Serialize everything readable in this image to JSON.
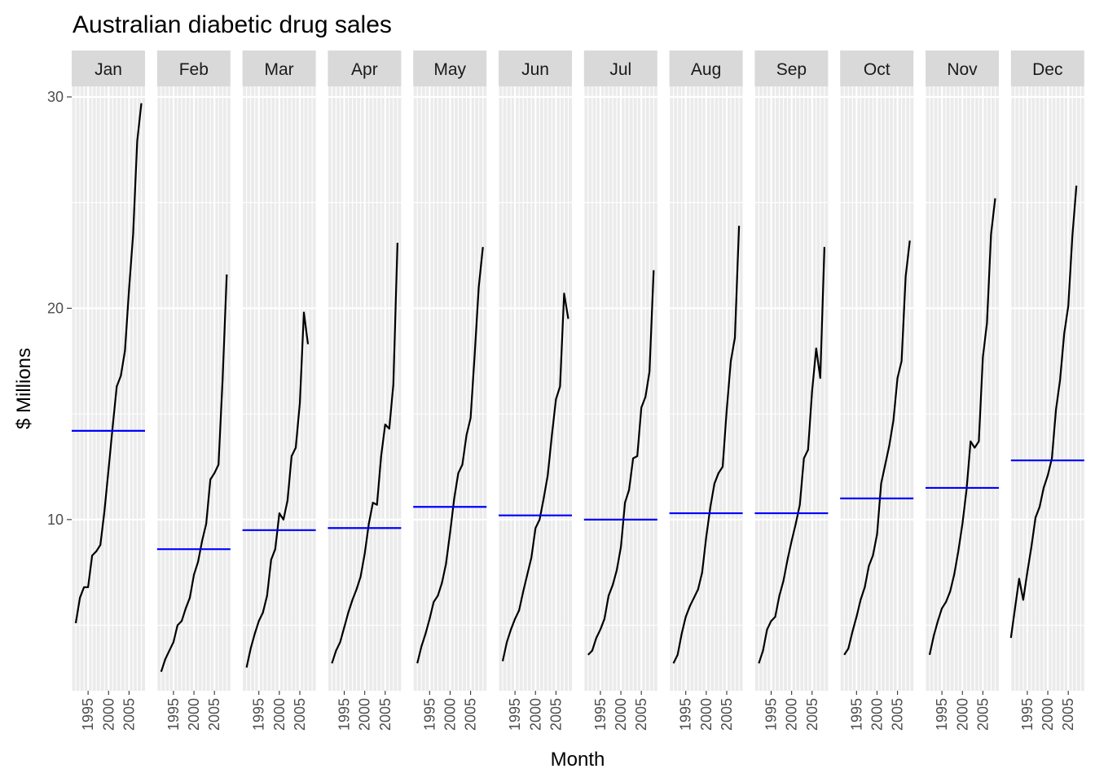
{
  "chart_data": {
    "type": "line",
    "title": "Australian diabetic drug sales",
    "xlabel": "Month",
    "ylabel": "$ Millions",
    "ylim": [
      1.9,
      30.5
    ],
    "yticks": [
      10,
      20,
      30
    ],
    "xlim": [
      1991,
      2008.9
    ],
    "xticks": [
      1995,
      2000,
      2005
    ],
    "colors": {
      "series": "#000000",
      "mean": "#0000ff",
      "panel": "#ebebeb",
      "strip": "#d9d9d9",
      "grid": "#ffffff"
    },
    "panels": [
      {
        "month": "Jan",
        "mean": 14.2,
        "years": [
          1992,
          1993,
          1994,
          1995,
          1996,
          1997,
          1998,
          1999,
          2000,
          2001,
          2002,
          2003,
          2004,
          2005,
          2006,
          2007,
          2008
        ],
        "values": [
          5.1,
          6.3,
          6.8,
          6.8,
          8.3,
          8.5,
          8.8,
          10.4,
          12.4,
          14.4,
          16.3,
          16.8,
          18.0,
          20.9,
          23.5,
          27.9,
          29.7
        ]
      },
      {
        "month": "Feb",
        "mean": 8.6,
        "years": [
          1992,
          1993,
          1994,
          1995,
          1996,
          1997,
          1998,
          1999,
          2000,
          2001,
          2002,
          2003,
          2004,
          2005,
          2006,
          2007,
          2008
        ],
        "values": [
          2.8,
          3.4,
          3.8,
          4.2,
          5.0,
          5.2,
          5.8,
          6.3,
          7.4,
          8.0,
          9.0,
          9.8,
          11.9,
          12.2,
          12.6,
          16.6,
          21.6
        ]
      },
      {
        "month": "Mar",
        "mean": 9.5,
        "years": [
          1992,
          1993,
          1994,
          1995,
          1996,
          1997,
          1998,
          1999,
          2000,
          2001,
          2002,
          2003,
          2004,
          2005,
          2006,
          2007,
          2008
        ],
        "values": [
          3.0,
          3.9,
          4.6,
          5.2,
          5.6,
          6.4,
          8.1,
          8.6,
          10.3,
          10.0,
          10.9,
          13.0,
          13.4,
          15.5,
          19.8,
          18.3,
          null
        ]
      },
      {
        "month": "Apr",
        "mean": 9.6,
        "years": [
          1992,
          1993,
          1994,
          1995,
          1996,
          1997,
          1998,
          1999,
          2000,
          2001,
          2002,
          2003,
          2004,
          2005,
          2006,
          2007,
          2008
        ],
        "values": [
          3.2,
          3.8,
          4.2,
          4.9,
          5.6,
          6.2,
          6.7,
          7.3,
          8.4,
          9.8,
          10.8,
          10.7,
          13.0,
          14.5,
          14.3,
          16.4,
          23.1
        ]
      },
      {
        "month": "May",
        "mean": 10.6,
        "years": [
          1992,
          1993,
          1994,
          1995,
          1996,
          1997,
          1998,
          1999,
          2000,
          2001,
          2002,
          2003,
          2004,
          2005,
          2006,
          2007,
          2008
        ],
        "values": [
          3.2,
          4.0,
          4.6,
          5.3,
          6.1,
          6.4,
          7.0,
          7.9,
          9.4,
          11.0,
          12.2,
          12.6,
          14.0,
          14.8,
          17.8,
          21.0,
          22.9
        ]
      },
      {
        "month": "Jun",
        "mean": 10.2,
        "years": [
          1992,
          1993,
          1994,
          1995,
          1996,
          1997,
          1998,
          1999,
          2000,
          2001,
          2002,
          2003,
          2004,
          2005,
          2006,
          2007,
          2008
        ],
        "values": [
          3.3,
          4.2,
          4.8,
          5.3,
          5.7,
          6.6,
          7.4,
          8.2,
          9.6,
          10.0,
          11.0,
          12.1,
          14.0,
          15.7,
          16.3,
          20.7,
          19.5
        ]
      },
      {
        "month": "Jul",
        "mean": 10.0,
        "years": [
          1992,
          1993,
          1994,
          1995,
          1996,
          1997,
          1998,
          1999,
          2000,
          2001,
          2002,
          2003,
          2004,
          2005,
          2006,
          2007,
          2008
        ],
        "values": [
          3.6,
          3.8,
          4.4,
          4.8,
          5.3,
          6.4,
          6.9,
          7.6,
          8.7,
          10.8,
          11.4,
          12.9,
          13.0,
          15.3,
          15.8,
          17.0,
          21.8
        ]
      },
      {
        "month": "Aug",
        "mean": 10.3,
        "years": [
          1992,
          1993,
          1994,
          1995,
          1996,
          1997,
          1998,
          1999,
          2000,
          2001,
          2002,
          2003,
          2004,
          2005,
          2006,
          2007,
          2008
        ],
        "values": [
          3.2,
          3.6,
          4.6,
          5.4,
          5.9,
          6.3,
          6.7,
          7.5,
          9.2,
          10.6,
          11.7,
          12.2,
          12.5,
          15.2,
          17.5,
          18.6,
          23.9
        ]
      },
      {
        "month": "Sep",
        "mean": 10.3,
        "years": [
          1992,
          1993,
          1994,
          1995,
          1996,
          1997,
          1998,
          1999,
          2000,
          2001,
          2002,
          2003,
          2004,
          2005,
          2006,
          2007,
          2008
        ],
        "values": [
          3.2,
          3.8,
          4.8,
          5.2,
          5.4,
          6.4,
          7.1,
          8.1,
          9.0,
          9.8,
          10.7,
          12.9,
          13.3,
          16.1,
          18.1,
          16.7,
          22.9
        ]
      },
      {
        "month": "Oct",
        "mean": 11.0,
        "years": [
          1992,
          1993,
          1994,
          1995,
          1996,
          1997,
          1998,
          1999,
          2000,
          2001,
          2002,
          2003,
          2004,
          2005,
          2006,
          2007,
          2008
        ],
        "values": [
          3.6,
          3.9,
          4.7,
          5.4,
          6.2,
          6.8,
          7.8,
          8.3,
          9.3,
          11.7,
          12.6,
          13.5,
          14.7,
          16.7,
          17.5,
          21.5,
          23.2
        ]
      },
      {
        "month": "Nov",
        "mean": 11.5,
        "years": [
          1992,
          1993,
          1994,
          1995,
          1996,
          1997,
          1998,
          1999,
          2000,
          2001,
          2002,
          2003,
          2004,
          2005,
          2006,
          2007,
          2008
        ],
        "values": [
          3.6,
          4.5,
          5.2,
          5.8,
          6.1,
          6.6,
          7.4,
          8.5,
          9.8,
          11.4,
          13.7,
          13.4,
          13.7,
          17.7,
          19.3,
          23.5,
          25.2
        ]
      },
      {
        "month": "Dec",
        "mean": 12.8,
        "years": [
          1991,
          1992,
          1993,
          1994,
          1995,
          1996,
          1997,
          1998,
          1999,
          2000,
          2001,
          2002,
          2003,
          2004,
          2005,
          2006,
          2007,
          2008
        ],
        "values": [
          4.4,
          5.8,
          7.2,
          6.2,
          7.5,
          8.7,
          10.1,
          10.6,
          11.5,
          12.1,
          12.9,
          15.2,
          16.6,
          18.8,
          20.1,
          23.4,
          25.8,
          null
        ]
      }
    ]
  }
}
